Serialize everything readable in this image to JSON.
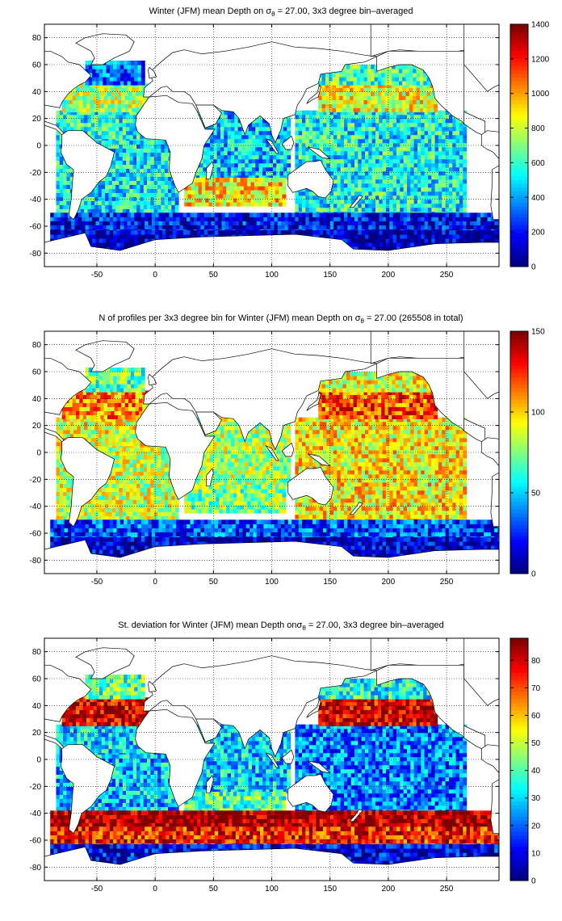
{
  "panels": [
    {
      "title_prefix": "Winter (JFM) mean Depth on σ",
      "title_sub": "θ",
      "title_suffix": " = 27.00, 3x3 degree bin–averaged",
      "colorbar": {
        "ticks": [
          "0",
          "200",
          "400",
          "600",
          "800",
          "1000",
          "1200",
          "1400"
        ],
        "min": 0,
        "max": 1400
      },
      "chart_data": {
        "type": "heatmap",
        "quantity": "mean depth",
        "x_ticks": [
          "-50",
          "0",
          "50",
          "100",
          "150",
          "200",
          "250"
        ],
        "y_ticks": [
          "80",
          "60",
          "40",
          "20",
          "0",
          "-20",
          "-40",
          "-60",
          "-80"
        ],
        "xlim": [
          -95,
          295
        ],
        "ylim": [
          -90,
          90
        ],
        "grid": true,
        "bin_size_deg": 3,
        "colormap": "jet",
        "clim": [
          0,
          1400
        ],
        "regions": [
          {
            "x": [
              -85,
              20
            ],
            "y": [
              -50,
              5
            ],
            "v": 520
          },
          {
            "x": [
              -85,
              -5
            ],
            "y": [
              5,
              25
            ],
            "v": 560
          },
          {
            "x": [
              -80,
              -5
            ],
            "y": [
              25,
              45
            ],
            "v": 760
          },
          {
            "x": [
              -60,
              -10
            ],
            "y": [
              45,
              62
            ],
            "v": 320
          },
          {
            "x": [
              20,
              115
            ],
            "y": [
              -25,
              25
            ],
            "v": 460
          },
          {
            "x": [
              25,
              110
            ],
            "y": [
              -45,
              -25
            ],
            "v": 900
          },
          {
            "x": [
              120,
              265
            ],
            "y": [
              -55,
              25
            ],
            "v": 540
          },
          {
            "x": [
              140,
              240
            ],
            "y": [
              25,
              45
            ],
            "v": 860
          },
          {
            "x": [
              140,
              235
            ],
            "y": [
              45,
              60
            ],
            "v": 620
          },
          {
            "x": [
              -90,
              295
            ],
            "y": [
              -65,
              -50
            ],
            "v": 180
          },
          {
            "x": [
              -90,
              295
            ],
            "y": [
              -78,
              -65
            ],
            "v": 70
          }
        ]
      }
    },
    {
      "title_prefix": "N of profiles per 3x3 degree bin for Winter (JFM) mean Depth on σ",
      "title_sub": "θ",
      "title_suffix": " = 27.00 (265508 in total)",
      "colorbar": {
        "ticks": [
          "0",
          "50",
          "100",
          "150"
        ],
        "min": 0,
        "max": 150
      },
      "chart_data": {
        "type": "heatmap",
        "quantity": "number of profiles",
        "x_ticks": [
          "-50",
          "0",
          "50",
          "100",
          "150",
          "200",
          "250"
        ],
        "y_ticks": [
          "80",
          "60",
          "40",
          "20",
          "0",
          "-20",
          "-40",
          "-60",
          "-80"
        ],
        "xlim": [
          -95,
          295
        ],
        "ylim": [
          -90,
          90
        ],
        "grid": true,
        "bin_size_deg": 3,
        "colormap": "jet",
        "clim": [
          0,
          150
        ],
        "total_profiles": 265508,
        "regions": [
          {
            "x": [
              -85,
              20
            ],
            "y": [
              -50,
              5
            ],
            "v": 85
          },
          {
            "x": [
              -85,
              -5
            ],
            "y": [
              5,
              25
            ],
            "v": 90
          },
          {
            "x": [
              -80,
              -5
            ],
            "y": [
              25,
              45
            ],
            "v": 110
          },
          {
            "x": [
              -60,
              -10
            ],
            "y": [
              45,
              62
            ],
            "v": 70
          },
          {
            "x": [
              20,
              115
            ],
            "y": [
              -25,
              25
            ],
            "v": 80
          },
          {
            "x": [
              25,
              110
            ],
            "y": [
              -45,
              -25
            ],
            "v": 75
          },
          {
            "x": [
              120,
              265
            ],
            "y": [
              -55,
              25
            ],
            "v": 95
          },
          {
            "x": [
              140,
              240
            ],
            "y": [
              25,
              45
            ],
            "v": 120
          },
          {
            "x": [
              140,
              235
            ],
            "y": [
              45,
              60
            ],
            "v": 90
          },
          {
            "x": [
              -90,
              295
            ],
            "y": [
              -65,
              -50
            ],
            "v": 30
          },
          {
            "x": [
              -90,
              295
            ],
            "y": [
              -78,
              -65
            ],
            "v": 10
          }
        ]
      }
    },
    {
      "title_prefix": "St. deviation for Winter (JFM) mean Depth onσ",
      "title_sub": "θ",
      "title_suffix": " = 27.00, 3x3 degree bin–averaged",
      "colorbar": {
        "ticks": [
          "0",
          "10",
          "20",
          "30",
          "40",
          "50",
          "60",
          "70",
          "80"
        ],
        "min": 0,
        "max": 88
      },
      "chart_data": {
        "type": "heatmap",
        "quantity": "standard deviation of depth",
        "x_ticks": [
          "-50",
          "0",
          "50",
          "100",
          "150",
          "200",
          "250"
        ],
        "y_ticks": [
          "80",
          "60",
          "40",
          "20",
          "0",
          "-20",
          "-40",
          "-60",
          "-80"
        ],
        "xlim": [
          -95,
          295
        ],
        "ylim": [
          -90,
          90
        ],
        "grid": true,
        "bin_size_deg": 3,
        "colormap": "jet",
        "clim": [
          0,
          88
        ],
        "regions": [
          {
            "x": [
              -85,
              20
            ],
            "y": [
              -50,
              5
            ],
            "v": 28
          },
          {
            "x": [
              -85,
              -5
            ],
            "y": [
              5,
              25
            ],
            "v": 30
          },
          {
            "x": [
              -80,
              -5
            ],
            "y": [
              25,
              45
            ],
            "v": 80
          },
          {
            "x": [
              -60,
              -10
            ],
            "y": [
              45,
              62
            ],
            "v": 40
          },
          {
            "x": [
              20,
              115
            ],
            "y": [
              -25,
              25
            ],
            "v": 30
          },
          {
            "x": [
              25,
              110
            ],
            "y": [
              -45,
              -25
            ],
            "v": 40
          },
          {
            "x": [
              120,
              265
            ],
            "y": [
              -55,
              25
            ],
            "v": 22
          },
          {
            "x": [
              140,
              240
            ],
            "y": [
              25,
              45
            ],
            "v": 80
          },
          {
            "x": [
              140,
              235
            ],
            "y": [
              45,
              60
            ],
            "v": 35
          },
          {
            "x": [
              -90,
              295
            ],
            "y": [
              -50,
              -40
            ],
            "v": 85
          },
          {
            "x": [
              -90,
              295
            ],
            "y": [
              -65,
              -50
            ],
            "v": 75
          },
          {
            "x": [
              -90,
              295
            ],
            "y": [
              -78,
              -65
            ],
            "v": 10
          }
        ]
      }
    }
  ]
}
